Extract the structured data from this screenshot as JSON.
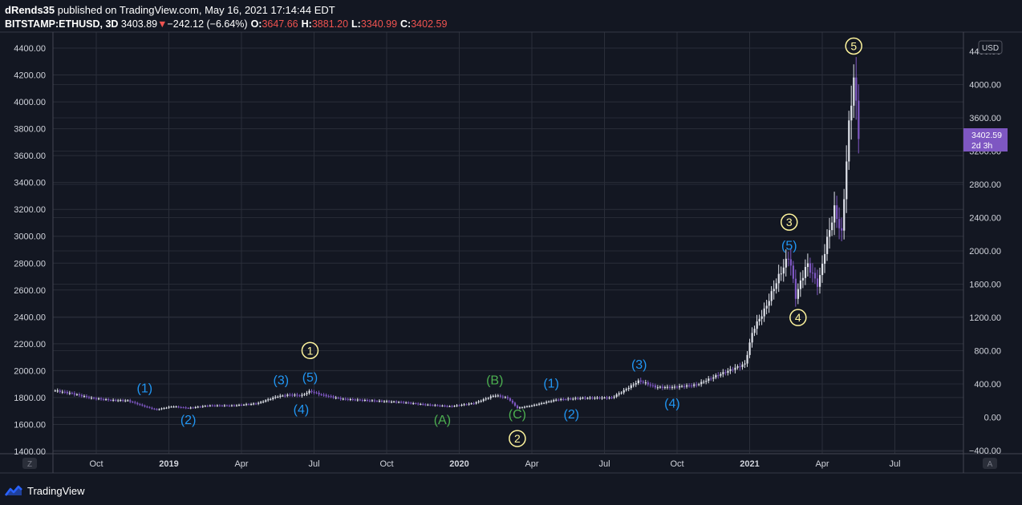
{
  "header": {
    "publisher": "dRends35",
    "published_text": "published on TradingView.com, May 16, 2021 17:14:44 EDT",
    "symbol": "BITSTAMP:ETHUSD, 3D",
    "last": "3403.89",
    "change": "−242.12 (−6.64%)",
    "open_label": "O:",
    "open": "3647.66",
    "high_label": "H:",
    "high": "3881.20",
    "low_label": "L:",
    "low": "3340.99",
    "close_label": "C:",
    "close": "3402.59"
  },
  "chart_data": {
    "type": "candlestick",
    "currency_badge": "USD",
    "left_axis": {
      "ticks": [
        "4400.00",
        "4200.00",
        "4000.00",
        "3800.00",
        "3600.00",
        "3400.00",
        "3200.00",
        "3000.00",
        "2800.00",
        "2600.00",
        "2400.00",
        "2200.00",
        "2000.00",
        "1800.00",
        "1600.00",
        "1400.00"
      ],
      "range": [
        1400,
        4400
      ]
    },
    "right_axis": {
      "ticks": [
        "4000.00",
        "3600.00",
        "3200.00",
        "2800.00",
        "2400.00",
        "2000.00",
        "1600.00",
        "1200.00",
        "800.00",
        "400.00",
        "0.00",
        "−400.00"
      ],
      "range": [
        -400,
        4400
      ],
      "partial_top_tick": "4400.00"
    },
    "x_axis": {
      "labels": [
        "Oct",
        "2019",
        "Apr",
        "Jul",
        "Oct",
        "2020",
        "Apr",
        "Jul",
        "Oct",
        "2021",
        "Apr",
        "Jul"
      ],
      "bold": [
        "2019",
        "2020",
        "2021"
      ]
    },
    "price_badge": {
      "value": "3402.59",
      "countdown": "2d 3h"
    },
    "price_path": [
      [
        "2018-08-10",
        320
      ],
      [
        "2018-09-01",
        285
      ],
      [
        "2018-09-25",
        230
      ],
      [
        "2018-10-20",
        205
      ],
      [
        "2018-11-10",
        200
      ],
      [
        "2018-12-01",
        130
      ],
      [
        "2018-12-15",
        90
      ],
      [
        "2019-01-05",
        130
      ],
      [
        "2019-01-25",
        110
      ],
      [
        "2019-02-20",
        140
      ],
      [
        "2019-03-20",
        140
      ],
      [
        "2019-04-20",
        165
      ],
      [
        "2019-05-15",
        250
      ],
      [
        "2019-06-01",
        270
      ],
      [
        "2019-06-15",
        260
      ],
      [
        "2019-06-26",
        315
      ],
      [
        "2019-07-10",
        270
      ],
      [
        "2019-08-05",
        220
      ],
      [
        "2019-09-10",
        200
      ],
      [
        "2019-10-20",
        180
      ],
      [
        "2019-11-20",
        150
      ],
      [
        "2019-12-20",
        130
      ],
      [
        "2020-01-20",
        170
      ],
      [
        "2020-02-15",
        265
      ],
      [
        "2020-03-01",
        230
      ],
      [
        "2020-03-13",
        110
      ],
      [
        "2020-04-01",
        140
      ],
      [
        "2020-05-01",
        210
      ],
      [
        "2020-06-01",
        230
      ],
      [
        "2020-07-10",
        235
      ],
      [
        "2020-07-25",
        320
      ],
      [
        "2020-08-14",
        440
      ],
      [
        "2020-09-05",
        360
      ],
      [
        "2020-09-25",
        360
      ],
      [
        "2020-10-25",
        390
      ],
      [
        "2020-11-20",
        500
      ],
      [
        "2020-12-10",
        580
      ],
      [
        "2020-12-25",
        640
      ],
      [
        "2021-01-05",
        1050
      ],
      [
        "2021-01-20",
        1300
      ],
      [
        "2021-02-05",
        1650
      ],
      [
        "2021-02-20",
        1950
      ],
      [
        "2021-02-28",
        1450
      ],
      [
        "2021-03-12",
        1850
      ],
      [
        "2021-03-26",
        1580
      ],
      [
        "2021-04-05",
        2050
      ],
      [
        "2021-04-16",
        2500
      ],
      [
        "2021-04-25",
        2200
      ],
      [
        "2021-05-03",
        3400
      ],
      [
        "2021-05-10",
        4100
      ],
      [
        "2021-05-12",
        3850
      ],
      [
        "2021-05-16",
        3403
      ]
    ],
    "wave_labels": [
      {
        "text": "1",
        "color": "#fff59d",
        "circled": true,
        "date": "2019-06-26",
        "price": 2150
      },
      {
        "text": "(5)",
        "color": "#2196f3",
        "date": "2019-06-26",
        "price": 1955
      },
      {
        "text": "(3)",
        "color": "#2196f3",
        "date": "2019-05-20",
        "price": 1935
      },
      {
        "text": "(4)",
        "color": "#2196f3",
        "date": "2019-06-15",
        "price": 1715
      },
      {
        "text": "(1)",
        "color": "#2196f3",
        "date": "2018-12-01",
        "price": 1875
      },
      {
        "text": "(2)",
        "color": "#2196f3",
        "date": "2019-01-25",
        "price": 1640
      },
      {
        "text": "(B)",
        "color": "#4caf50",
        "date": "2020-02-15",
        "price": 1935
      },
      {
        "text": "(A)",
        "color": "#4caf50",
        "date": "2019-12-10",
        "price": 1640
      },
      {
        "text": "(C)",
        "color": "#4caf50",
        "date": "2020-03-13",
        "price": 1680
      },
      {
        "text": "2",
        "color": "#fff59d",
        "circled": true,
        "date": "2020-03-13",
        "price": 1495
      },
      {
        "text": "(1)",
        "color": "#2196f3",
        "date": "2020-04-25",
        "price": 1910
      },
      {
        "text": "(2)",
        "color": "#2196f3",
        "date": "2020-05-20",
        "price": 1680
      },
      {
        "text": "(3)",
        "color": "#2196f3",
        "date": "2020-08-14",
        "price": 2050
      },
      {
        "text": "(4)",
        "color": "#2196f3",
        "date": "2020-09-25",
        "price": 1760
      },
      {
        "text": "3",
        "color": "#fff59d",
        "circled": true,
        "date": "2021-02-20",
        "price": 3105
      },
      {
        "text": "(5)",
        "color": "#2196f3",
        "date": "2021-02-20",
        "price": 2935
      },
      {
        "text": "4",
        "color": "#fff59d",
        "circled": true,
        "date": "2021-03-01",
        "price": 2395
      },
      {
        "text": "5",
        "color": "#fff59d",
        "circled": true,
        "date": "2021-05-10",
        "price": 4415
      }
    ],
    "corner_buttons": {
      "left": "Z",
      "right": "A"
    },
    "grid": true
  },
  "footer": {
    "brand": "TradingView"
  }
}
